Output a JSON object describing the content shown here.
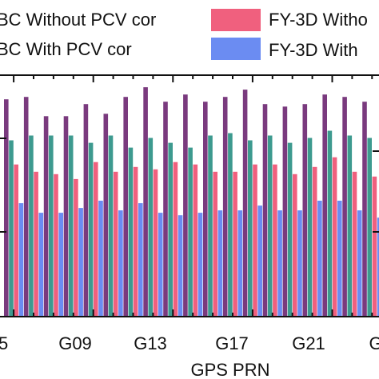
{
  "chart_data": {
    "type": "bar",
    "xlabel": "GPS PRN",
    "ylabel": "",
    "tick_labels": [
      "5",
      "G09",
      "G13",
      "G17",
      "G21",
      "G"
    ],
    "ylim": [
      0,
      100
    ],
    "grid": false,
    "legend_placement": "top",
    "series": [
      {
        "name": "BC Without PCV cor",
        "color": "#7a3a7e",
        "values": [
          90,
          91,
          83,
          83,
          88,
          84,
          91,
          95,
          89,
          92,
          89,
          91,
          94,
          88,
          87,
          88,
          92,
          91,
          89,
          91
        ]
      },
      {
        "name": "BC With PCV cor",
        "color": "#3d9a8f",
        "values": [
          73,
          75,
          75,
          75,
          72,
          75,
          70,
          74,
          72,
          70,
          75,
          76,
          73,
          75,
          72,
          74,
          77,
          75,
          74,
          76
        ]
      },
      {
        "name": "FY-3D Witho",
        "color": "#f0607e",
        "values": [
          63,
          60,
          59,
          57,
          64,
          60,
          62,
          61,
          64,
          63,
          60,
          60,
          63,
          63,
          59,
          62,
          66,
          60,
          58,
          62
        ]
      },
      {
        "name": "FY-3D With",
        "color": "#6b8cf2",
        "values": [
          47,
          43,
          43,
          45,
          48,
          44,
          47,
          43,
          42,
          43,
          44,
          44,
          46,
          44,
          44,
          48,
          48,
          44,
          41,
          47
        ]
      }
    ]
  },
  "colors": {
    "axis": "#111111"
  }
}
